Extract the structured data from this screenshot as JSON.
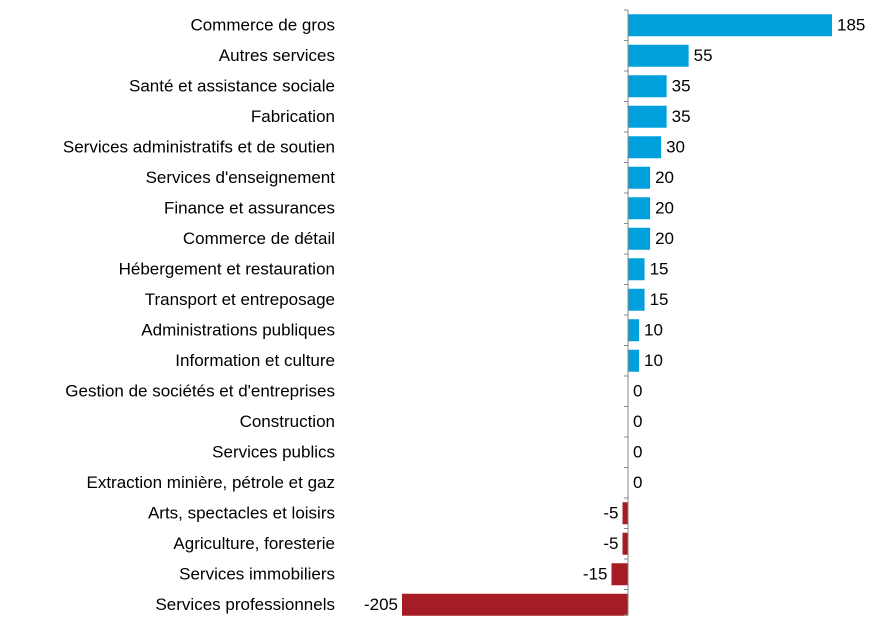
{
  "chart_data": {
    "type": "barh",
    "categories": [
      "Commerce de gros",
      "Autres services",
      "Santé et assistance sociale",
      "Fabrication",
      "Services administratifs et de soutien",
      "Services d'enseignement",
      "Finance et assurances",
      "Commerce de détail",
      "Hébergement et restauration",
      "Transport et entreposage",
      "Administrations publiques",
      "Information et culture",
      "Gestion de sociétés et d'entreprises",
      "Construction",
      "Services publics",
      "Extraction minière, pétrole et gaz",
      "Arts, spectacles et loisirs",
      "Agriculture, foresterie",
      "Services immobiliers",
      "Services professionnels"
    ],
    "values": [
      185,
      55,
      35,
      35,
      30,
      20,
      20,
      20,
      15,
      15,
      10,
      10,
      0,
      0,
      0,
      0,
      -5,
      -5,
      -15,
      -205
    ],
    "color": "#00a0dc",
    "negative_color": "#a51c24",
    "xlim": [
      -205,
      185
    ]
  }
}
